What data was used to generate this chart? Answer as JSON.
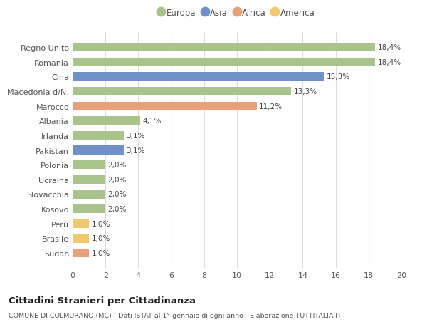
{
  "categories": [
    "Sudan",
    "Brasile",
    "Perù",
    "Kosovo",
    "Slovacchia",
    "Ucraina",
    "Polonia",
    "Pakistan",
    "Irlanda",
    "Albania",
    "Marocco",
    "Macedonia d/N.",
    "Cina",
    "Romania",
    "Regno Unito"
  ],
  "values": [
    1.0,
    1.0,
    1.0,
    2.0,
    2.0,
    2.0,
    2.0,
    3.1,
    3.1,
    4.1,
    11.2,
    13.3,
    15.3,
    18.4,
    18.4
  ],
  "labels": [
    "1,0%",
    "1,0%",
    "1,0%",
    "2,0%",
    "2,0%",
    "2,0%",
    "2,0%",
    "3,1%",
    "3,1%",
    "4,1%",
    "11,2%",
    "13,3%",
    "15,3%",
    "18,4%",
    "18,4%"
  ],
  "colors": [
    "#e8a07a",
    "#f0c96e",
    "#f0c96e",
    "#a8c48a",
    "#a8c48a",
    "#a8c48a",
    "#a8c48a",
    "#7090c8",
    "#a8c48a",
    "#a8c48a",
    "#e8a07a",
    "#a8c48a",
    "#7090c8",
    "#a8c48a",
    "#a8c48a"
  ],
  "continent_colors": {
    "Europa": "#a8c48a",
    "Asia": "#7090c8",
    "Africa": "#e8a07a",
    "America": "#f0c96e"
  },
  "title": "Cittadini Stranieri per Cittadinanza",
  "subtitle": "COMUNE DI COLMURANO (MC) - Dati ISTAT al 1° gennaio di ogni anno - Elaborazione TUTTITALIA.IT",
  "xlim": [
    0,
    20
  ],
  "xticks": [
    0,
    2,
    4,
    6,
    8,
    10,
    12,
    14,
    16,
    18,
    20
  ],
  "background_color": "#ffffff",
  "bar_height": 0.6,
  "grid_color": "#dddddd"
}
